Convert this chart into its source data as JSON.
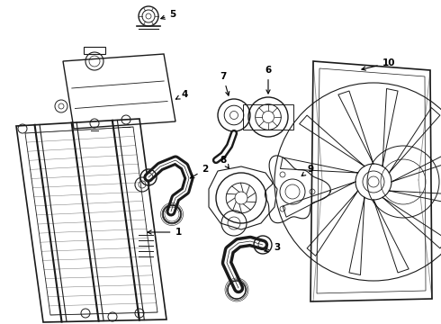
{
  "background_color": "#ffffff",
  "line_color": "#1a1a1a",
  "fig_width": 4.9,
  "fig_height": 3.6,
  "dpi": 100,
  "xlim": [
    0,
    490
  ],
  "ylim": [
    0,
    360
  ]
}
